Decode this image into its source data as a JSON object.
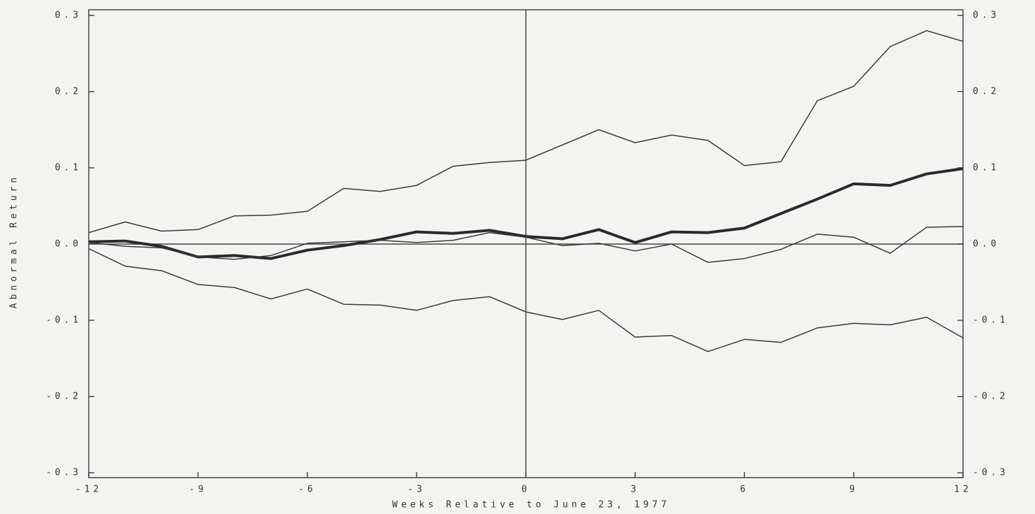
{
  "chart_data": {
    "type": "line",
    "x_label": "Weeks Relative to June 23, 1977",
    "y_label": "Abnormal Return",
    "x": [
      -12,
      -11,
      -10,
      -9,
      -8,
      -7,
      -6,
      -5,
      -4,
      -3,
      -2,
      -1,
      0,
      1,
      2,
      3,
      4,
      5,
      6,
      7,
      8,
      9,
      10,
      11,
      12
    ],
    "series": [
      {
        "color": "#3a3a3a",
        "width": 1.5,
        "values": [
          0.015,
          0.029,
          0.017,
          0.019,
          0.037,
          0.038,
          0.043,
          0.073,
          0.069,
          0.077,
          0.102,
          0.107,
          0.11,
          0.13,
          0.15,
          0.133,
          0.143,
          0.136,
          0.103,
          0.108,
          0.188,
          0.207,
          0.259,
          0.28,
          0.266
        ]
      },
      {
        "color": "#2a2a2a",
        "width": 4,
        "values": [
          0.003,
          0.004,
          -0.003,
          -0.017,
          -0.015,
          -0.019,
          -0.008,
          -0.002,
          0.006,
          0.016,
          0.014,
          0.018,
          0.01,
          0.007,
          0.019,
          0.002,
          0.016,
          0.015,
          0.021,
          0.04,
          0.059,
          0.079,
          0.077,
          0.092,
          0.099
        ]
      },
      {
        "color": "#3a3a3a",
        "width": 1.5,
        "values": [
          0.002,
          -0.003,
          -0.005,
          -0.017,
          -0.02,
          -0.015,
          0.001,
          0.003,
          0.005,
          0.002,
          0.005,
          0.015,
          0.009,
          -0.002,
          0.001,
          -0.009,
          0.0,
          -0.024,
          -0.019,
          -0.007,
          0.013,
          0.009,
          -0.012,
          0.022,
          0.023
        ]
      },
      {
        "color": "#3a3a3a",
        "width": 1.5,
        "values": [
          -0.006,
          -0.029,
          -0.035,
          -0.053,
          -0.057,
          -0.072,
          -0.059,
          -0.079,
          -0.08,
          -0.087,
          -0.074,
          -0.069,
          -0.089,
          -0.099,
          -0.087,
          -0.122,
          -0.12,
          -0.141,
          -0.125,
          -0.129,
          -0.11,
          -0.104,
          -0.106,
          -0.096,
          -0.123
        ]
      }
    ],
    "xlim": [
      -12,
      12
    ],
    "xticks": [
      -12,
      -9,
      -6,
      -3,
      0,
      3,
      6,
      9,
      12
    ],
    "ylim": [
      -0.3,
      0.3
    ],
    "yticks": [
      -0.3,
      -0.2,
      -0.1,
      {
        "value": 0,
        "label": "0.0"
      },
      0.1,
      0.2,
      0.3
    ],
    "y2lim": [
      -0.3,
      0.3
    ],
    "y2ticks": [
      -0.3,
      -0.2,
      -0.1,
      {
        "value": 0,
        "label": "0.0"
      },
      0.1,
      0.2,
      0.3
    ],
    "reference_lines": {
      "x": 0,
      "y": 0
    }
  }
}
